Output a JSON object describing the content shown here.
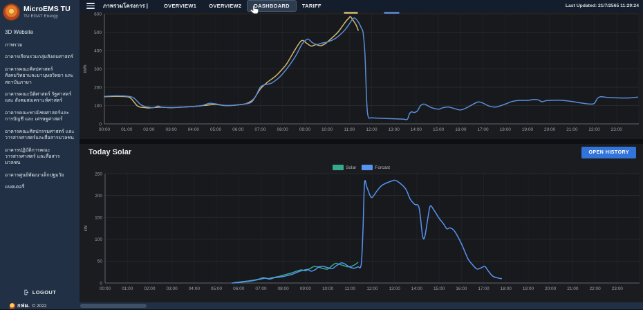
{
  "app": {
    "title": "MicroEMS TU",
    "subtitle": "TU EGAT Energy",
    "last_updated": "Last Updated: 21/7/2565 11:29:24",
    "footer_brand": "กฟผ.",
    "footer_year": "© 2022"
  },
  "topnav": {
    "menu_label": "ภาพรวมโครงการ |",
    "tabs": [
      {
        "label": "OVERVIEW1",
        "active": false
      },
      {
        "label": "OVERVIEW2",
        "active": false
      },
      {
        "label": "DASHBOARD",
        "active": true
      },
      {
        "label": "TARIFF",
        "active": false
      }
    ]
  },
  "sidebar": {
    "items": [
      {
        "label": "3D Website"
      },
      {
        "label": "ภาพรวม"
      },
      {
        "label": "อาคารเรียนรวมกลุ่มสังคมศาสตร์"
      },
      {
        "label": "อาคารคณะศิลปศาสตร์ สังคมวิทยาและมานุษยวิทยา และสถาบันภาษา"
      },
      {
        "label": "อาคารคณะนิติศาสตร์ รัฐศาสตร์ และ สังคมสงเคราะห์ศาสตร์"
      },
      {
        "label": "อาคารคณะพาณิชยศาสตร์และการบัญชี และ เศรษฐศาสตร์"
      },
      {
        "label": "อาคารคณะศิลปกรรมศาสตร์ และวารสารศาสตร์และสื่อสารมวลชน"
      },
      {
        "label": "อาคารปฏิบัติการคณะวารสารศาสตร์ และสื่อสารมวลชน"
      },
      {
        "label": "อาคารศูนย์พัฒนาเด็กปฐมวัย"
      },
      {
        "label": "แบตเตอรี่"
      }
    ],
    "logout_label": "LOGOUT"
  },
  "solar_panel": {
    "title": "Today Solar",
    "button_label": "OPEN HISTORY"
  },
  "colors": {
    "sidebar_bg": "#213044",
    "topbar_bg": "#141d2b",
    "panel_bg": "#1a1c20",
    "plot_bg": "#17191d",
    "grid": "#26282d",
    "axis": "#62666d",
    "tick_text": "#9aa0a8",
    "load_line_yellow": "#d6ba6d",
    "load_line_blue": "#5b8dd9",
    "solar_green": "#35ab8e",
    "forecast_blue": "#5794f2",
    "button_blue": "#3274d9"
  },
  "chart_data": [
    {
      "type": "line",
      "title": "",
      "xlabel": "",
      "ylabel": "kWh",
      "ylim": [
        0,
        600
      ],
      "yticks": [
        0,
        100,
        200,
        300,
        400,
        500,
        600
      ],
      "x_range_hours": [
        0,
        24
      ],
      "x_tick_labels": [
        "00:00",
        "01:00",
        "02:00",
        "03:00",
        "04:00",
        "05:00",
        "06:00",
        "07:00",
        "08:00",
        "09:00",
        "10:00",
        "11:00",
        "12:00",
        "13:00",
        "14:00",
        "15:00",
        "16:00",
        "17:00",
        "18:00",
        "19:00",
        "20:00",
        "21:00",
        "22:00",
        "23:00"
      ],
      "grid": true,
      "legend_style": "dashes-top-center",
      "series": [
        {
          "name": "",
          "color": "#d6ba6d",
          "points": [
            [
              0,
              148
            ],
            [
              0.5,
              150
            ],
            [
              1,
              148
            ],
            [
              1.2,
              138
            ],
            [
              1.5,
              96
            ],
            [
              1.8,
              89
            ],
            [
              2,
              87
            ],
            [
              2.5,
              91
            ],
            [
              3,
              88
            ],
            [
              3.5,
              92
            ],
            [
              4,
              95
            ],
            [
              4.3,
              98
            ],
            [
              4.6,
              102
            ],
            [
              5,
              106
            ],
            [
              5.4,
              100
            ],
            [
              5.8,
              101
            ],
            [
              6.1,
              105
            ],
            [
              6.4,
              112
            ],
            [
              6.7,
              135
            ],
            [
              7,
              190
            ],
            [
              7.3,
              225
            ],
            [
              7.7,
              262
            ],
            [
              8,
              300
            ],
            [
              8.2,
              330
            ],
            [
              8.5,
              392
            ],
            [
              8.75,
              440
            ],
            [
              8.9,
              455
            ],
            [
              9.1,
              438
            ],
            [
              9.3,
              424
            ],
            [
              9.5,
              432
            ],
            [
              9.7,
              426
            ],
            [
              9.9,
              436
            ],
            [
              10.1,
              456
            ],
            [
              10.3,
              478
            ],
            [
              10.5,
              502
            ],
            [
              10.7,
              535
            ],
            [
              10.85,
              560
            ],
            [
              11,
              580
            ],
            [
              11.05,
              585
            ],
            [
              11.15,
              568
            ],
            [
              11.3,
              540
            ],
            [
              11.4,
              510
            ]
          ]
        },
        {
          "name": "",
          "color": "#5b8dd9",
          "points": [
            [
              0,
              150
            ],
            [
              0.5,
              153
            ],
            [
              1,
              151
            ],
            [
              1.3,
              143
            ],
            [
              1.6,
              108
            ],
            [
              1.8,
              95
            ],
            [
              2,
              91
            ],
            [
              2.2,
              88
            ],
            [
              2.4,
              97
            ],
            [
              2.6,
              91
            ],
            [
              3,
              89
            ],
            [
              3.5,
              91
            ],
            [
              4,
              95
            ],
            [
              4.4,
              100
            ],
            [
              4.7,
              112
            ],
            [
              5,
              109
            ],
            [
              5.3,
              102
            ],
            [
              5.6,
              100
            ],
            [
              6,
              104
            ],
            [
              6.3,
              108
            ],
            [
              6.6,
              118
            ],
            [
              6.8,
              152
            ],
            [
              7,
              200
            ],
            [
              7.2,
              213
            ],
            [
              7.5,
              222
            ],
            [
              7.8,
              248
            ],
            [
              8,
              272
            ],
            [
              8.3,
              318
            ],
            [
              8.6,
              372
            ],
            [
              8.85,
              430
            ],
            [
              9,
              452
            ],
            [
              9.15,
              462
            ],
            [
              9.35,
              442
            ],
            [
              9.55,
              433
            ],
            [
              9.75,
              440
            ],
            [
              10,
              446
            ],
            [
              10.2,
              455
            ],
            [
              10.4,
              468
            ],
            [
              10.6,
              488
            ],
            [
              10.8,
              512
            ],
            [
              11,
              545
            ],
            [
              11.15,
              572
            ],
            [
              11.25,
              576
            ],
            [
              11.4,
              556
            ],
            [
              11.55,
              520
            ],
            [
              11.62,
              495
            ],
            [
              11.7,
              380
            ],
            [
              11.78,
              120
            ],
            [
              11.85,
              38
            ],
            [
              12,
              33
            ],
            [
              12.5,
              30
            ],
            [
              13,
              28
            ],
            [
              13.4,
              26
            ],
            [
              13.6,
              25
            ],
            [
              13.7,
              55
            ],
            [
              13.8,
              66
            ],
            [
              13.9,
              62
            ],
            [
              14.05,
              70
            ],
            [
              14.2,
              100
            ],
            [
              14.35,
              108
            ],
            [
              14.5,
              100
            ],
            [
              14.7,
              88
            ],
            [
              15,
              80
            ],
            [
              15.2,
              88
            ],
            [
              15.45,
              92
            ],
            [
              15.7,
              84
            ],
            [
              16,
              76
            ],
            [
              16.3,
              90
            ],
            [
              16.6,
              110
            ],
            [
              16.8,
              120
            ],
            [
              17,
              113
            ],
            [
              17.3,
              96
            ],
            [
              17.6,
              92
            ],
            [
              18,
              108
            ],
            [
              18.3,
              122
            ],
            [
              18.6,
              128
            ],
            [
              19,
              128
            ],
            [
              19.3,
              133
            ],
            [
              19.5,
              130
            ],
            [
              19.65,
              121
            ],
            [
              19.85,
              127
            ],
            [
              20.2,
              129
            ],
            [
              20.6,
              128
            ],
            [
              21,
              122
            ],
            [
              21.4,
              114
            ],
            [
              21.8,
              108
            ],
            [
              22,
              112
            ],
            [
              22.15,
              140
            ],
            [
              22.3,
              148
            ],
            [
              22.6,
              144
            ],
            [
              23,
              142
            ],
            [
              23.5,
              141
            ],
            [
              23.95,
              146
            ]
          ]
        }
      ]
    },
    {
      "type": "line",
      "title": "Today Solar",
      "xlabel": "",
      "ylabel": "kW",
      "ylim": [
        0,
        250
      ],
      "yticks": [
        0,
        50,
        100,
        150,
        200,
        250
      ],
      "x_range_hours": [
        0,
        24
      ],
      "x_tick_labels": [
        "00:00",
        "01:00",
        "02:00",
        "03:00",
        "04:00",
        "05:00",
        "06:00",
        "07:00",
        "08:00",
        "09:00",
        "10:00",
        "11:00",
        "12:00",
        "13:00",
        "14:00",
        "15:00",
        "16:00",
        "17:00",
        "18:00",
        "19:00",
        "20:00",
        "21:00",
        "22:00",
        "23:00"
      ],
      "grid": true,
      "legend_style": "labeled-top-center",
      "series": [
        {
          "name": "Solar",
          "color": "#35ab8e",
          "points": [
            [
              5.8,
              1
            ],
            [
              6,
              2
            ],
            [
              6.3,
              4
            ],
            [
              6.6,
              6
            ],
            [
              6.9,
              9
            ],
            [
              7.1,
              12
            ],
            [
              7.3,
              10
            ],
            [
              7.5,
              12
            ],
            [
              7.8,
              15
            ],
            [
              8,
              18
            ],
            [
              8.3,
              22
            ],
            [
              8.6,
              27
            ],
            [
              8.8,
              30
            ],
            [
              9,
              28
            ],
            [
              9.2,
              33
            ],
            [
              9.4,
              38
            ],
            [
              9.6,
              36
            ],
            [
              9.8,
              33
            ],
            [
              10,
              32
            ],
            [
              10.2,
              40
            ],
            [
              10.35,
              45
            ],
            [
              10.5,
              43
            ],
            [
              10.7,
              40
            ],
            [
              10.9,
              37
            ],
            [
              11.1,
              39
            ],
            [
              11.25,
              43
            ],
            [
              11.35,
              47
            ]
          ]
        },
        {
          "name": "Forcast",
          "color": "#5794f2",
          "points": [
            [
              5.7,
              0
            ],
            [
              6,
              1
            ],
            [
              6.3,
              3
            ],
            [
              6.6,
              5
            ],
            [
              6.9,
              8
            ],
            [
              7.2,
              11
            ],
            [
              7.4,
              9
            ],
            [
              7.6,
              12
            ],
            [
              7.9,
              14
            ],
            [
              8.1,
              16
            ],
            [
              8.4,
              20
            ],
            [
              8.7,
              26
            ],
            [
              8.9,
              29
            ],
            [
              9.1,
              31
            ],
            [
              9.25,
              27
            ],
            [
              9.45,
              31
            ],
            [
              9.6,
              37
            ],
            [
              9.8,
              38
            ],
            [
              10,
              35
            ],
            [
              10.2,
              33
            ],
            [
              10.4,
              40
            ],
            [
              10.6,
              46
            ],
            [
              10.75,
              44
            ],
            [
              10.9,
              39
            ],
            [
              11.05,
              35
            ],
            [
              11.2,
              34
            ],
            [
              11.35,
              37
            ],
            [
              11.5,
              42
            ],
            [
              11.58,
              120
            ],
            [
              11.65,
              228
            ],
            [
              11.75,
              220
            ],
            [
              11.9,
              200
            ],
            [
              12,
              196
            ],
            [
              12.2,
              210
            ],
            [
              12.4,
              222
            ],
            [
              12.6,
              228
            ],
            [
              12.8,
              232
            ],
            [
              13,
              235
            ],
            [
              13.2,
              230
            ],
            [
              13.5,
              215
            ],
            [
              13.7,
              192
            ],
            [
              13.9,
              180
            ],
            [
              14.1,
              172
            ],
            [
              14.25,
              110
            ],
            [
              14.35,
              105
            ],
            [
              14.5,
              150
            ],
            [
              14.6,
              176
            ],
            [
              14.75,
              168
            ],
            [
              15,
              148
            ],
            [
              15.2,
              135
            ],
            [
              15.35,
              124
            ],
            [
              15.5,
              126
            ],
            [
              15.7,
              118
            ],
            [
              16,
              90
            ],
            [
              16.3,
              55
            ],
            [
              16.5,
              42
            ],
            [
              16.7,
              32
            ],
            [
              16.9,
              35
            ],
            [
              17.05,
              38
            ],
            [
              17.2,
              28
            ],
            [
              17.4,
              16
            ],
            [
              17.6,
              12
            ],
            [
              17.8,
              10
            ]
          ]
        }
      ]
    }
  ]
}
